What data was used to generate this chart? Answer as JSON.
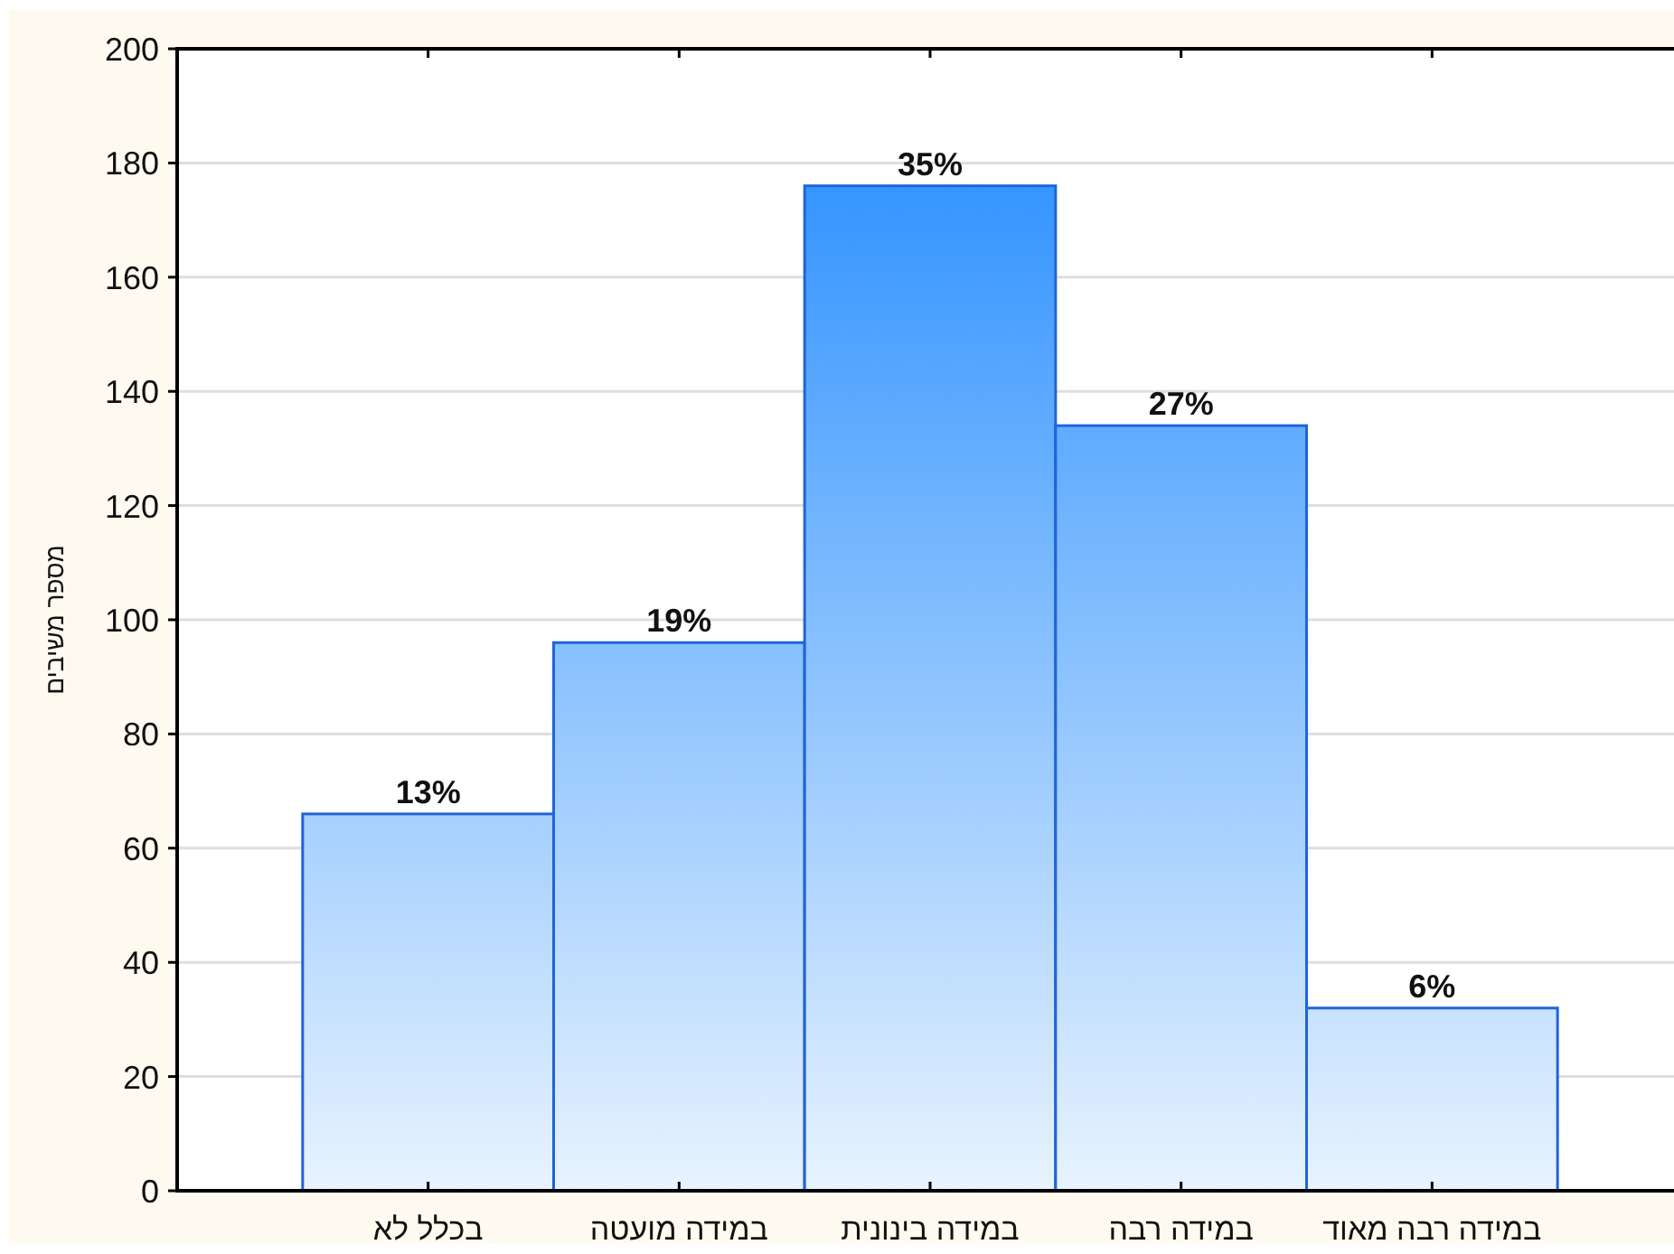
{
  "chart_data": {
    "type": "bar",
    "ylabel": "מספר משיבים",
    "categories": [
      "בכלל לא",
      "במידה מועטה",
      "במידה בינונית",
      "במידה רבה",
      "במידה רבה מאוד"
    ],
    "values": [
      66,
      96,
      176,
      134,
      32
    ],
    "annotations": [
      {
        "text": "13%",
        "x": "בכלל לא",
        "y": 66
      },
      {
        "text": "19%",
        "x": "במידה מועטה",
        "y": 96
      },
      {
        "text": "35%",
        "x": "במידה בינונית",
        "y": 176
      },
      {
        "text": "27%",
        "x": "במידה רבה",
        "y": 134
      },
      {
        "text": "6%",
        "x": "במידה רבה מאוד",
        "y": 32
      }
    ],
    "color": "#1f64da",
    "ylim": [
      0,
      200
    ],
    "yticks": [
      0,
      20,
      40,
      60,
      80,
      100,
      120,
      140,
      160,
      180,
      200
    ],
    "grid": "y"
  }
}
